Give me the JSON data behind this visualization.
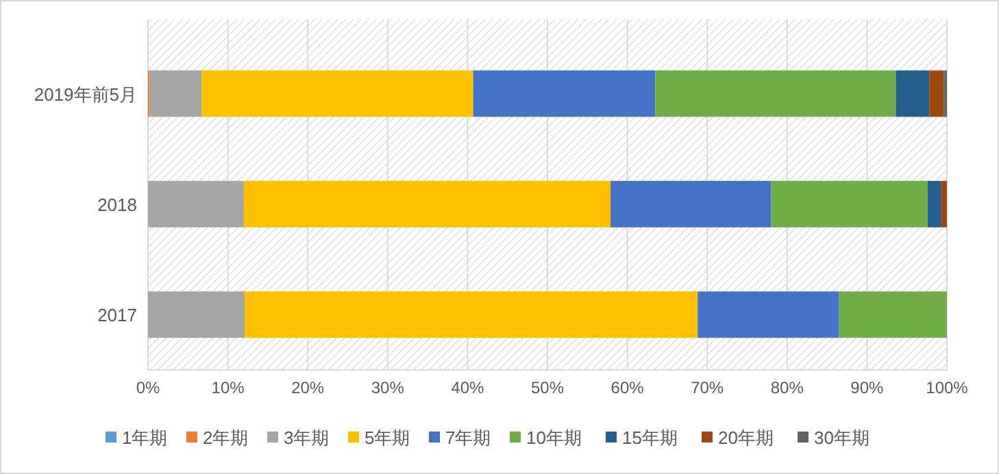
{
  "chart_data": {
    "type": "bar",
    "orientation": "horizontal",
    "stacked": true,
    "categories": [
      "2019年前5月",
      "2018",
      "2017"
    ],
    "series": [
      {
        "name": "1年期",
        "color": "#5b9bd5",
        "values": [
          0,
          0,
          0
        ]
      },
      {
        "name": "2年期",
        "color": "#ed7d31",
        "values": [
          0.2,
          0,
          0
        ]
      },
      {
        "name": "3年期",
        "color": "#a5a5a5",
        "values": [
          6.5,
          12.0,
          12.1
        ]
      },
      {
        "name": "5年期",
        "color": "#ffc000",
        "values": [
          34.0,
          45.9,
          56.7
        ]
      },
      {
        "name": "7年期",
        "color": "#4472c4",
        "values": [
          22.8,
          20.1,
          17.7
        ]
      },
      {
        "name": "10年期",
        "color": "#70ad47",
        "values": [
          30.1,
          19.6,
          13.5
        ]
      },
      {
        "name": "15年期",
        "color": "#255e91",
        "values": [
          4.2,
          1.7,
          0
        ]
      },
      {
        "name": "20年期",
        "color": "#9e480e",
        "values": [
          1.8,
          0.7,
          0
        ]
      },
      {
        "name": "30年期",
        "color": "#636363",
        "values": [
          0.4,
          0,
          0
        ]
      }
    ],
    "xlim": [
      0,
      100
    ],
    "xticks": [
      {
        "value": 0,
        "label": "0%"
      },
      {
        "value": 10,
        "label": "10%"
      },
      {
        "value": 20,
        "label": "20%"
      },
      {
        "value": 30,
        "label": "30%"
      },
      {
        "value": 40,
        "label": "40%"
      },
      {
        "value": 50,
        "label": "50%"
      },
      {
        "value": 60,
        "label": "60%"
      },
      {
        "value": 70,
        "label": "70%"
      },
      {
        "value": 80,
        "label": "80%"
      },
      {
        "value": 90,
        "label": "90%"
      },
      {
        "value": 100,
        "label": "100%"
      }
    ],
    "grid": "x",
    "legend": "bottom"
  }
}
